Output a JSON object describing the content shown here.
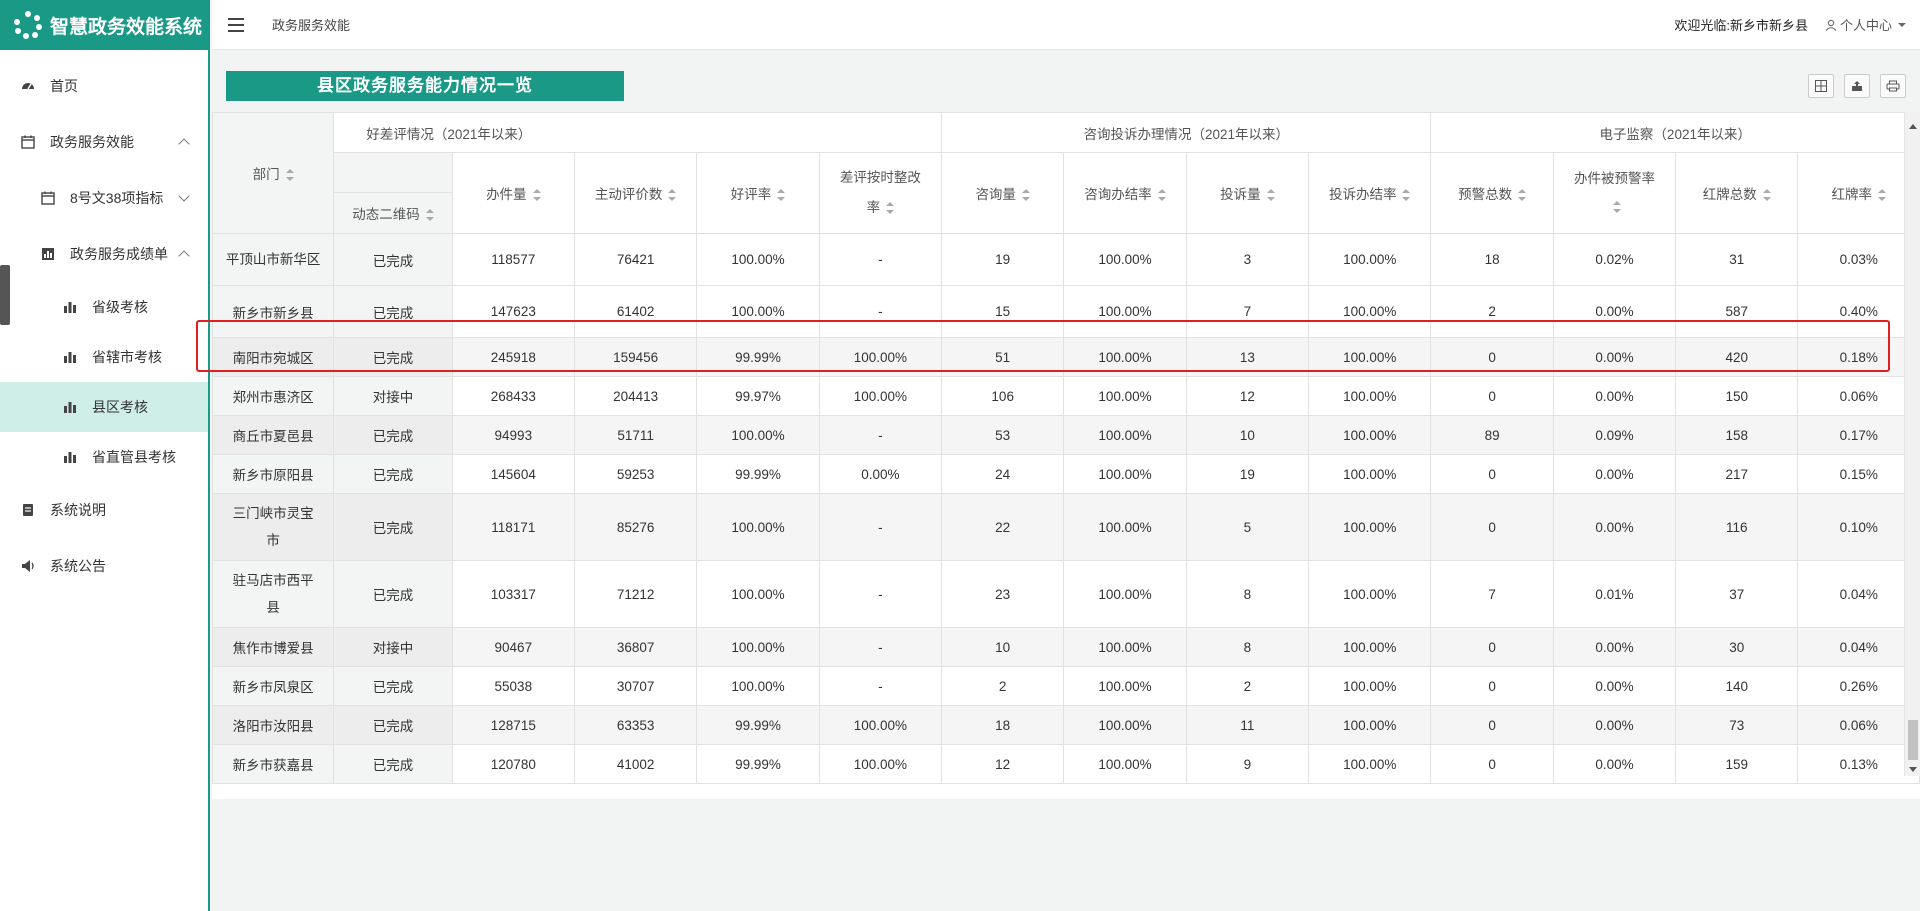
{
  "app": {
    "title": "智慧政务效能系统"
  },
  "topbar": {
    "breadcrumb": "政务服务效能",
    "welcome": "欢迎光临:新乡市新乡县",
    "user_center": "个人中心"
  },
  "sidebar": {
    "items": [
      {
        "label": "首页",
        "icon": "dashboard-icon"
      },
      {
        "label": "政务服务效能",
        "icon": "calendar-icon"
      },
      {
        "label": "8号文38项指标",
        "icon": "calendar-icon"
      },
      {
        "label": "政务服务成绩单",
        "icon": "bar-chart-icon"
      },
      {
        "label": "省级考核",
        "icon": "bar-chart-icon"
      },
      {
        "label": "省辖市考核",
        "icon": "bar-chart-icon"
      },
      {
        "label": "县区考核",
        "icon": "bar-chart-icon"
      },
      {
        "label": "省直管县考核",
        "icon": "bar-chart-icon"
      },
      {
        "label": "系统说明",
        "icon": "document-icon"
      },
      {
        "label": "系统公告",
        "icon": "speaker-icon"
      }
    ]
  },
  "panel": {
    "title": "县区政务服务能力情况一览"
  },
  "table": {
    "group_headers": {
      "g1": "好差评情况（2021年以来）",
      "g2": "咨询投诉办理情况（2021年以来）",
      "g3": "电子监察（2021年以来）"
    },
    "columns": {
      "dept": "部门",
      "qrcode": "动态二维码",
      "handled": "办件量",
      "active_reviews": "主动评价数",
      "good_rate": "好评率",
      "bad_fix_rate": "差评按时整改率",
      "consult": "咨询量",
      "consult_done": "咨询办结率",
      "complaints": "投诉量",
      "complaint_done": "投诉办结率",
      "warnings": "预警总数",
      "warned_rate": "办件被预警率",
      "red_cards": "红牌总数",
      "red_rate": "红牌率"
    },
    "rows": [
      [
        "平顶山市新华区",
        "已完成",
        "118577",
        "76421",
        "100.00%",
        "-",
        "19",
        "100.00%",
        "3",
        "100.00%",
        "18",
        "0.02%",
        "31",
        "0.03%"
      ],
      [
        "新乡市新乡县",
        "已完成",
        "147623",
        "61402",
        "100.00%",
        "-",
        "15",
        "100.00%",
        "7",
        "100.00%",
        "2",
        "0.00%",
        "587",
        "0.40%"
      ],
      [
        "南阳市宛城区",
        "已完成",
        "245918",
        "159456",
        "99.99%",
        "100.00%",
        "51",
        "100.00%",
        "13",
        "100.00%",
        "0",
        "0.00%",
        "420",
        "0.18%"
      ],
      [
        "郑州市惠济区",
        "对接中",
        "268433",
        "204413",
        "99.97%",
        "100.00%",
        "106",
        "100.00%",
        "12",
        "100.00%",
        "0",
        "0.00%",
        "150",
        "0.06%"
      ],
      [
        "商丘市夏邑县",
        "已完成",
        "94993",
        "51711",
        "100.00%",
        "-",
        "53",
        "100.00%",
        "10",
        "100.00%",
        "89",
        "0.09%",
        "158",
        "0.17%"
      ],
      [
        "新乡市原阳县",
        "已完成",
        "145604",
        "59253",
        "99.99%",
        "0.00%",
        "24",
        "100.00%",
        "19",
        "100.00%",
        "0",
        "0.00%",
        "217",
        "0.15%"
      ],
      [
        "三门峡市灵宝市",
        "已完成",
        "118171",
        "85276",
        "100.00%",
        "-",
        "22",
        "100.00%",
        "5",
        "100.00%",
        "0",
        "0.00%",
        "116",
        "0.10%"
      ],
      [
        "驻马店市西平县",
        "已完成",
        "103317",
        "71212",
        "100.00%",
        "-",
        "23",
        "100.00%",
        "8",
        "100.00%",
        "7",
        "0.01%",
        "37",
        "0.04%"
      ],
      [
        "焦作市博爱县",
        "对接中",
        "90467",
        "36807",
        "100.00%",
        "-",
        "10",
        "100.00%",
        "8",
        "100.00%",
        "0",
        "0.00%",
        "30",
        "0.04%"
      ],
      [
        "新乡市凤泉区",
        "已完成",
        "55038",
        "30707",
        "100.00%",
        "-",
        "2",
        "100.00%",
        "2",
        "100.00%",
        "0",
        "0.00%",
        "140",
        "0.26%"
      ],
      [
        "洛阳市汝阳县",
        "已完成",
        "128715",
        "63353",
        "99.99%",
        "100.00%",
        "18",
        "100.00%",
        "11",
        "100.00%",
        "0",
        "0.00%",
        "73",
        "0.06%"
      ],
      [
        "新乡市获嘉县",
        "已完成",
        "120780",
        "41002",
        "99.99%",
        "100.00%",
        "12",
        "100.00%",
        "9",
        "100.00%",
        "0",
        "0.00%",
        "159",
        "0.13%"
      ]
    ]
  },
  "colors": {
    "accent": "#1a9a86",
    "highlight": "#e02020",
    "active_nav": "#cfeee8"
  }
}
